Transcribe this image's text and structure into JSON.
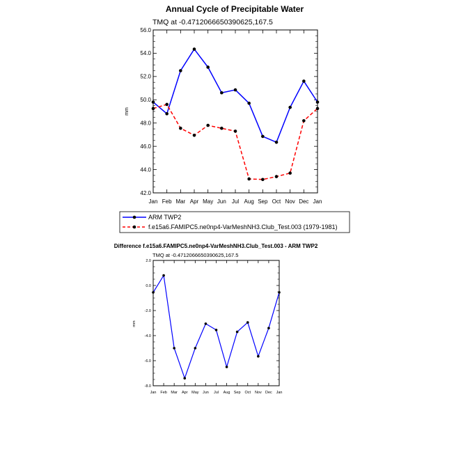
{
  "chart_data": [
    {
      "type": "line",
      "title": "Annual Cycle of Precipitable Water",
      "subtitle": "TMQ at -0.4712066650390625,167.5",
      "xlabel": "",
      "ylabel": "mm",
      "categories": [
        "Jan",
        "Feb",
        "Mar",
        "Apr",
        "May",
        "Jun",
        "Jul",
        "Aug",
        "Sep",
        "Oct",
        "Nov",
        "Dec",
        "Jan"
      ],
      "ylim": [
        42.0,
        56.0
      ],
      "yticks": [
        "42.0",
        "44.0",
        "46.0",
        "48.0",
        "50.0",
        "52.0",
        "54.0",
        "56.0"
      ],
      "series": [
        {
          "name": "ARM TWP2",
          "color": "#0000ff",
          "dash": "solid",
          "values": [
            49.8,
            48.8,
            52.5,
            54.35,
            52.8,
            50.6,
            50.85,
            49.7,
            46.85,
            46.35,
            49.35,
            51.6,
            49.8
          ]
        },
        {
          "name": "f.e15a6.FAMIPC5.ne0np4-VarMeshNH3.Club_Test.003 (1979-1981)",
          "color": "#ff0000",
          "dash": "dashed",
          "values": [
            49.25,
            49.6,
            47.55,
            46.95,
            47.8,
            47.55,
            47.3,
            43.2,
            43.15,
            43.4,
            43.7,
            48.2,
            49.25
          ]
        }
      ],
      "legend_position": "bottom"
    },
    {
      "type": "line",
      "title": "Difference f.e15a6.FAMIPC5.ne0np4-VarMeshNH3.Club_Test.003 - ARM TWP2",
      "subtitle": "TMQ at -0.4712066650390625,167.5",
      "xlabel": "",
      "ylabel": "mm",
      "categories": [
        "Jan",
        "Feb",
        "Mar",
        "Apr",
        "May",
        "Jun",
        "Jul",
        "Aug",
        "Sep",
        "Oct",
        "Nov",
        "Dec",
        "Jan"
      ],
      "ylim": [
        -8.0,
        2.0
      ],
      "yticks": [
        "-8.0",
        "-6.0",
        "-4.0",
        "-2.0",
        "0.0",
        "2.0"
      ],
      "series": [
        {
          "name": "Difference",
          "color": "#0000ff",
          "dash": "solid",
          "values": [
            -0.55,
            0.8,
            -5.0,
            -7.4,
            -5.0,
            -3.05,
            -3.55,
            -6.5,
            -3.7,
            -2.95,
            -5.65,
            -3.4,
            -0.55
          ]
        }
      ]
    }
  ]
}
